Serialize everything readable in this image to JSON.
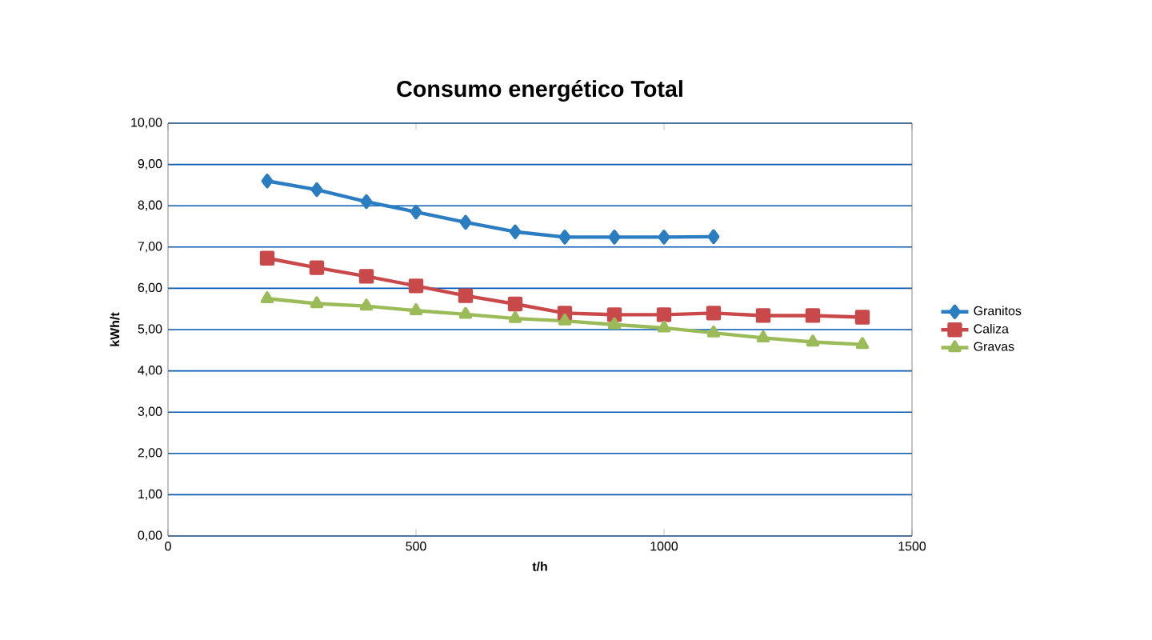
{
  "chart_data": {
    "type": "line",
    "title": "Consumo energético Total",
    "xlabel": "t/h",
    "ylabel": "kWh/t",
    "xlim": [
      0,
      1500
    ],
    "xticks": [
      0,
      500,
      1000,
      1500
    ],
    "ylim": [
      0,
      10
    ],
    "yticks": [
      {
        "value": 0,
        "label": "0,00"
      },
      {
        "value": 1,
        "label": "1,00"
      },
      {
        "value": 2,
        "label": "2,00"
      },
      {
        "value": 3,
        "label": "3,00"
      },
      {
        "value": 4,
        "label": "4,00"
      },
      {
        "value": 5,
        "label": "5,00"
      },
      {
        "value": 6,
        "label": "6,00"
      },
      {
        "value": 7,
        "label": "7,00"
      },
      {
        "value": 8,
        "label": "8,00"
      },
      {
        "value": 9,
        "label": "9,00"
      },
      {
        "value": 10,
        "label": "10,00"
      }
    ],
    "grid": "y",
    "legend": "right",
    "line_style": "solid",
    "series": [
      {
        "name": "Granitos",
        "color": "#2a7dc0",
        "marker": "diamond",
        "x": [
          200,
          300,
          400,
          500,
          600,
          700,
          800,
          900,
          1000,
          1100
        ],
        "values": [
          8.6,
          8.39,
          8.1,
          7.85,
          7.6,
          7.37,
          7.24,
          7.24,
          7.24,
          7.25
        ]
      },
      {
        "name": "Caliza",
        "color": "#c9484a",
        "marker": "square",
        "x": [
          200,
          300,
          400,
          500,
          600,
          700,
          800,
          900,
          1000,
          1100,
          1200,
          1300,
          1400
        ],
        "values": [
          6.73,
          6.5,
          6.29,
          6.06,
          5.82,
          5.62,
          5.4,
          5.36,
          5.36,
          5.4,
          5.34,
          5.34,
          5.3
        ]
      },
      {
        "name": "Gravas",
        "color": "#9bbb59",
        "marker": "triangle",
        "x": [
          200,
          300,
          400,
          500,
          600,
          700,
          800,
          900,
          1000,
          1100,
          1200,
          1300,
          1400
        ],
        "values": [
          5.75,
          5.63,
          5.57,
          5.46,
          5.37,
          5.27,
          5.21,
          5.12,
          5.04,
          4.92,
          4.8,
          4.7,
          4.64
        ]
      }
    ]
  }
}
